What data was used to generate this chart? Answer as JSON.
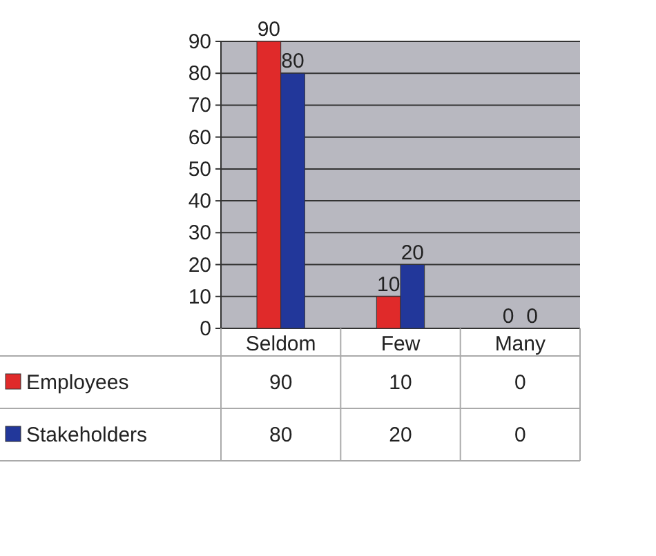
{
  "chart_data": {
    "type": "bar",
    "categories": [
      "Seldom",
      "Few",
      "Many"
    ],
    "series": [
      {
        "name": "Employees",
        "color": "#e02a2a",
        "values": [
          90,
          10,
          0
        ]
      },
      {
        "name": "Stakeholders",
        "color": "#22379a",
        "values": [
          80,
          20,
          0
        ]
      }
    ],
    "annotations": [
      {
        "text": "90",
        "x": "Seldom",
        "y": 90
      },
      {
        "text": "80",
        "x": "Seldom",
        "y": 80
      },
      {
        "text": "10",
        "x": "Few",
        "y": 10
      },
      {
        "text": "20",
        "x": "Few",
        "y": 20
      },
      {
        "text": "0",
        "x": "Many",
        "y": 0
      },
      {
        "text": "0",
        "x": "Many",
        "y": 0
      }
    ],
    "ylim": [
      0,
      90
    ],
    "yticks": [
      0,
      10,
      20,
      30,
      40,
      50,
      60,
      70,
      80,
      90
    ],
    "grid": "y",
    "data_labels": true,
    "legend": "bottom"
  }
}
